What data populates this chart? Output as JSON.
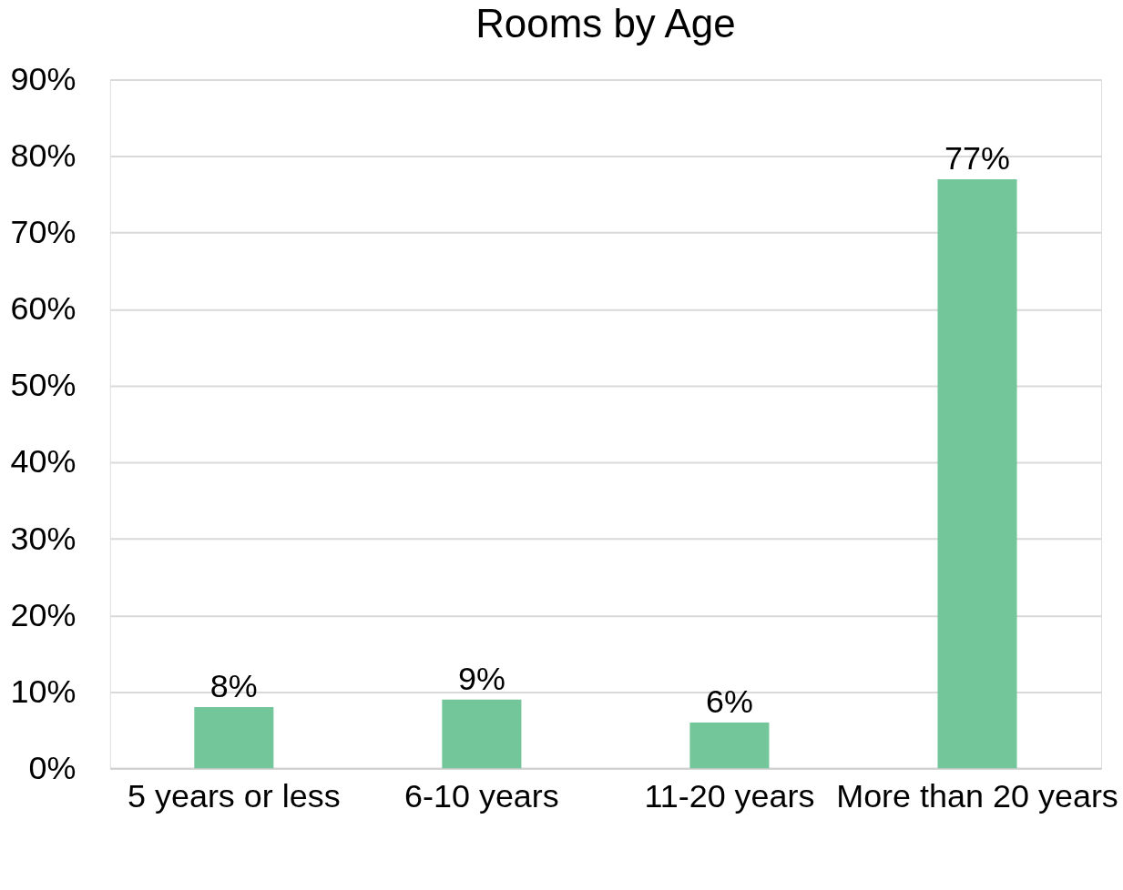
{
  "chart_data": {
    "type": "bar",
    "title": "Rooms by Age",
    "categories": [
      "5 years or less",
      "6-10 years",
      "11-20 years",
      "More than 20 years"
    ],
    "values": [
      8,
      9,
      6,
      77
    ],
    "color": "#73c69a",
    "ylim": [
      0,
      90
    ],
    "yticks": [
      {
        "value": 0,
        "label": "0%"
      },
      {
        "value": 10,
        "label": "10%"
      },
      {
        "value": 20,
        "label": "20%"
      },
      {
        "value": 30,
        "label": "30%"
      },
      {
        "value": 40,
        "label": "40%"
      },
      {
        "value": 50,
        "label": "50%"
      },
      {
        "value": 60,
        "label": "60%"
      },
      {
        "value": 70,
        "label": "70%"
      },
      {
        "value": 80,
        "label": "80%"
      },
      {
        "value": 90,
        "label": "90%"
      }
    ],
    "value_labels": [
      "8%",
      "9%",
      "6%",
      "77%"
    ],
    "grid": "y"
  }
}
